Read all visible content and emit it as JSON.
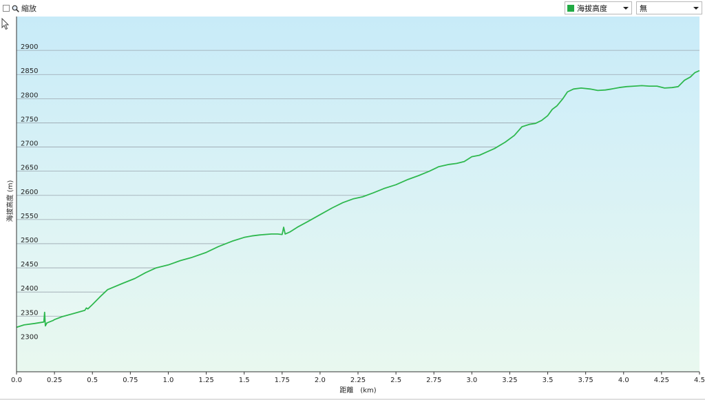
{
  "toolbar": {
    "zoom_label": "縮放",
    "series_select": {
      "selected": "海拔高度",
      "color": "#22aa44"
    },
    "compare_select": {
      "selected": "無"
    }
  },
  "colors": {
    "line": "#2eb84e",
    "area_top": "#cfeef9",
    "area_bottom": "#e9f8ef",
    "bg_top": "#c8ebf8",
    "bg_bottom": "#eefaf2",
    "grid": "#9aa5ae"
  },
  "chart_data": {
    "type": "area",
    "title": "",
    "xlabel": "距離　(km)",
    "ylabel": "海拔高度 (m)",
    "xlim": [
      0,
      4.5
    ],
    "ylim": [
      2235,
      2970
    ],
    "x_ticks": [
      {
        "value": 0,
        "label": "0.0"
      },
      {
        "value": 0.25,
        "label": "0.25"
      },
      {
        "value": 0.5,
        "label": "0.5"
      },
      {
        "value": 0.75,
        "label": "0.75"
      },
      {
        "value": 1.0,
        "label": "1.0"
      },
      {
        "value": 1.25,
        "label": "1.25"
      },
      {
        "value": 1.5,
        "label": "1.5"
      },
      {
        "value": 1.75,
        "label": "1.75"
      },
      {
        "value": 2.0,
        "label": "2.0"
      },
      {
        "value": 2.25,
        "label": "2.25"
      },
      {
        "value": 2.5,
        "label": "2.5"
      },
      {
        "value": 2.75,
        "label": "2.75"
      },
      {
        "value": 3.0,
        "label": "3.0"
      },
      {
        "value": 3.25,
        "label": "3.25"
      },
      {
        "value": 3.5,
        "label": "3.5"
      },
      {
        "value": 3.75,
        "label": "3.75"
      },
      {
        "value": 4.0,
        "label": "4.0"
      },
      {
        "value": 4.25,
        "label": "4.25"
      },
      {
        "value": 4.5,
        "label": "4.5"
      }
    ],
    "y_ticks": [
      {
        "value": 2300,
        "label": "2300"
      },
      {
        "value": 2350,
        "label": "2350"
      },
      {
        "value": 2400,
        "label": "2400"
      },
      {
        "value": 2450,
        "label": "2450"
      },
      {
        "value": 2500,
        "label": "2500"
      },
      {
        "value": 2550,
        "label": "2550"
      },
      {
        "value": 2600,
        "label": "2600"
      },
      {
        "value": 2650,
        "label": "2650"
      },
      {
        "value": 2700,
        "label": "2700"
      },
      {
        "value": 2750,
        "label": "2750"
      },
      {
        "value": 2800,
        "label": "2800"
      },
      {
        "value": 2850,
        "label": "2850"
      },
      {
        "value": 2900,
        "label": "2900"
      }
    ],
    "grid": true,
    "series": [
      {
        "name": "海拔高度",
        "x": [
          0,
          0.05,
          0.12,
          0.18,
          0.185,
          0.19,
          0.2,
          0.24,
          0.25,
          0.3,
          0.38,
          0.45,
          0.46,
          0.47,
          0.5,
          0.55,
          0.6,
          0.7,
          0.78,
          0.85,
          0.92,
          1.0,
          1.08,
          1.15,
          1.25,
          1.33,
          1.42,
          1.5,
          1.55,
          1.6,
          1.68,
          1.72,
          1.75,
          1.76,
          1.77,
          1.8,
          1.85,
          1.92,
          2.0,
          2.08,
          2.15,
          2.22,
          2.28,
          2.35,
          2.42,
          2.5,
          2.58,
          2.65,
          2.72,
          2.78,
          2.85,
          2.9,
          2.95,
          3.0,
          3.05,
          3.1,
          3.15,
          3.22,
          3.28,
          3.33,
          3.38,
          3.42,
          3.46,
          3.5,
          3.53,
          3.56,
          3.6,
          3.63,
          3.67,
          3.72,
          3.78,
          3.83,
          3.88,
          3.92,
          3.97,
          4.02,
          4.07,
          4.12,
          4.17,
          4.22,
          4.27,
          4.32,
          4.36,
          4.4,
          4.44,
          4.47,
          4.5
        ],
        "values": [
          2327,
          2332,
          2335,
          2338,
          2358,
          2330,
          2336,
          2341,
          2343,
          2349,
          2356,
          2362,
          2367,
          2365,
          2374,
          2390,
          2405,
          2418,
          2428,
          2440,
          2450,
          2456,
          2465,
          2471,
          2482,
          2494,
          2505,
          2513,
          2516,
          2518,
          2520,
          2520,
          2519,
          2534,
          2520,
          2524,
          2534,
          2546,
          2560,
          2574,
          2585,
          2593,
          2597,
          2605,
          2614,
          2622,
          2633,
          2641,
          2650,
          2659,
          2664,
          2666,
          2670,
          2680,
          2683,
          2690,
          2697,
          2710,
          2724,
          2742,
          2747,
          2749,
          2755,
          2765,
          2778,
          2785,
          2800,
          2814,
          2820,
          2822,
          2820,
          2817,
          2818,
          2820,
          2823,
          2825,
          2826,
          2827,
          2826,
          2826,
          2822,
          2823,
          2825,
          2838,
          2845,
          2854,
          2858
        ]
      }
    ]
  }
}
